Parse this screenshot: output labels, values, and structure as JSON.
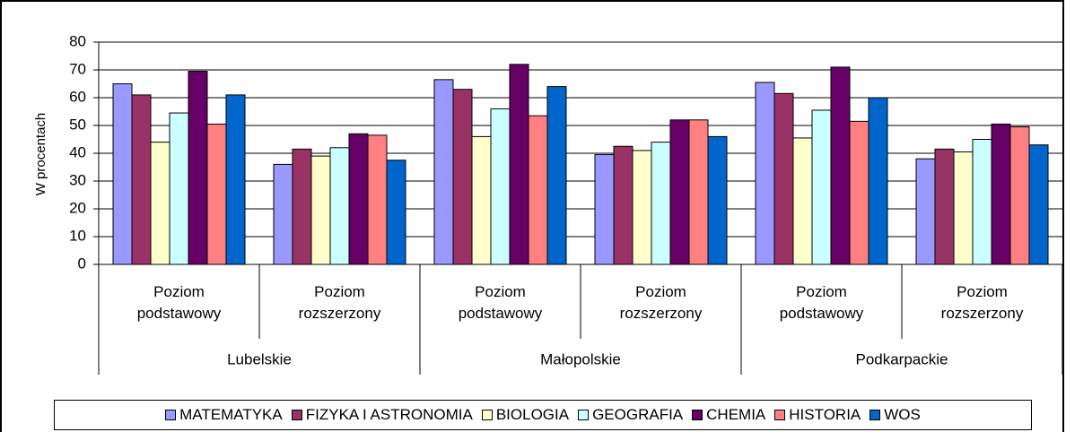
{
  "chart_data": {
    "type": "bar",
    "y_label": "W procentach",
    "categories": [
      "Poziom podstawowy",
      "Poziom rozszerzony",
      "Poziom podstawowy",
      "Poziom rozszerzony",
      "Poziom podstawowy",
      "Poziom rozszerzony"
    ],
    "groups": [
      "Lubelskie",
      "Małopolskie",
      "Podkarpackie"
    ],
    "ylim": [
      0,
      80
    ],
    "yticks": [
      0,
      10,
      20,
      30,
      40,
      50,
      60,
      70,
      80
    ],
    "grid": true,
    "legend": "bottom",
    "series": [
      {
        "name": "MATEMATYKA",
        "color": "#9999ff",
        "values": [
          65,
          36,
          66.5,
          39.5,
          65.5,
          38
        ]
      },
      {
        "name": "FIZYKA I ASTRONOMIA",
        "color": "#993366",
        "values": [
          61,
          41.5,
          63,
          42.5,
          61.5,
          41.5
        ]
      },
      {
        "name": "BIOLOGIA",
        "color": "#ffffcc",
        "values": [
          44,
          39,
          46,
          41,
          45.5,
          40.5
        ]
      },
      {
        "name": "GEOGRAFIA",
        "color": "#ccffff",
        "values": [
          54.5,
          42,
          56,
          44,
          55.5,
          45
        ]
      },
      {
        "name": "CHEMIA",
        "color": "#660066",
        "values": [
          69.5,
          47,
          72,
          52,
          71,
          50.5
        ]
      },
      {
        "name": "HISTORIA",
        "color": "#ff8080",
        "values": [
          50.5,
          46.5,
          53.5,
          52,
          51.5,
          49.5
        ]
      },
      {
        "name": "WOS",
        "color": "#0066cc",
        "values": [
          61,
          37.5,
          64,
          46,
          60,
          43
        ]
      }
    ]
  }
}
